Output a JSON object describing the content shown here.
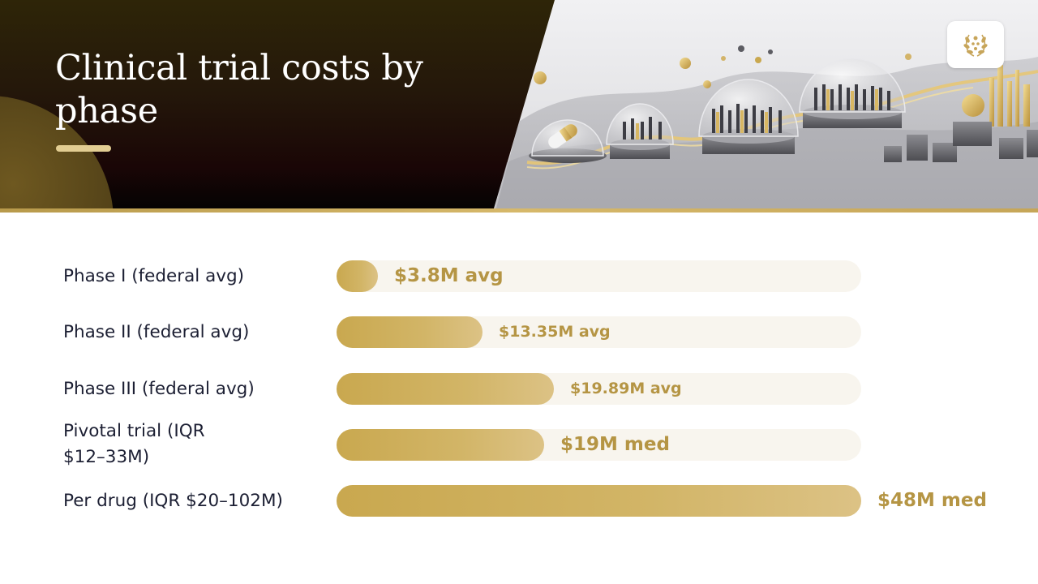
{
  "slide": {
    "title": "Clinical trial costs by phase"
  },
  "colors": {
    "accent": "#c9a84f",
    "value_text": "#b59544",
    "track": "#f8f5ee",
    "header_dark": "#24170a",
    "label_text": "#1c1f33"
  },
  "chart_data": {
    "type": "bar",
    "orientation": "horizontal",
    "categories": [
      "Phase I (federal avg)",
      "Phase II (federal avg)",
      "Phase III (federal avg)",
      "Pivotal trial (IQR $12–33M)",
      "Per drug (IQR $20–102M)"
    ],
    "values": [
      3.8,
      13.35,
      19.89,
      19,
      48
    ],
    "value_labels": [
      "$3.8M avg",
      "$13.35M avg",
      "$19.89M avg",
      "$19M med",
      "$48M med"
    ],
    "xlim": [
      0,
      48
    ],
    "grid": false,
    "legend": "none"
  }
}
